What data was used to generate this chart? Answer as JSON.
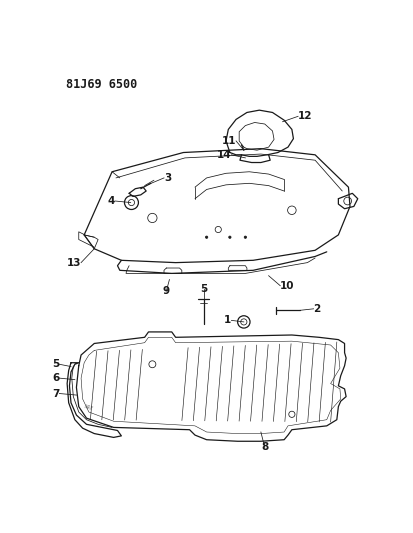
{
  "title": "81J69 6500",
  "bg_color": "#ffffff",
  "line_color": "#1a1a1a",
  "title_fontsize": 8.5,
  "label_fontsize": 7.5,
  "fig_width": 4.13,
  "fig_height": 5.33
}
